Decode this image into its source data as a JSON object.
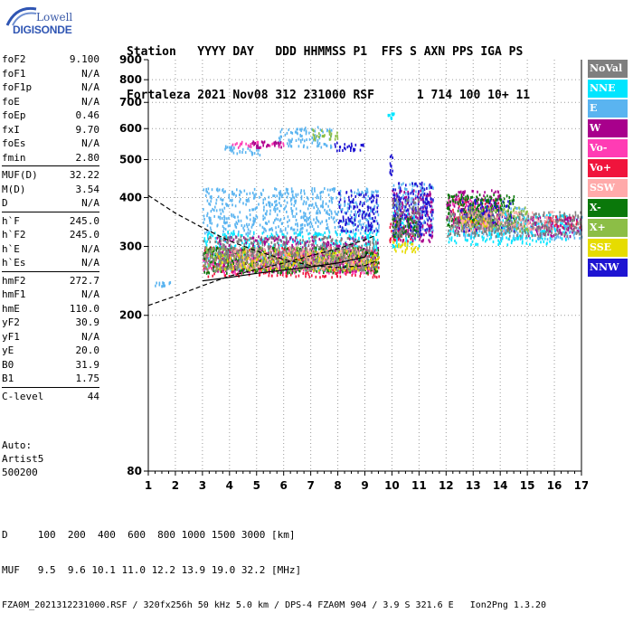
{
  "logo": {
    "line1": "Lowell",
    "line2": "DIGISONDE"
  },
  "header": {
    "line1": "Station   YYYY DAY   DDD HHMMSS P1  FFS S AXN PPS IGA PS",
    "line2": "Fortaleza 2021 Nov08 312 231000 RSF      1 714 100 10+ 11"
  },
  "params": [
    {
      "name": "foF2",
      "value": "9.100"
    },
    {
      "name": "foF1",
      "value": "N/A"
    },
    {
      "name": "foF1p",
      "value": "N/A"
    },
    {
      "name": "foE",
      "value": "N/A"
    },
    {
      "name": "foEp",
      "value": "0.46"
    },
    {
      "name": "fxI",
      "value": "9.70"
    },
    {
      "name": "foEs",
      "value": "N/A"
    },
    {
      "name": "fmin",
      "value": "2.80"
    },
    {
      "name": "MUF(D)",
      "value": "32.22"
    },
    {
      "name": "M(D)",
      "value": "3.54"
    },
    {
      "name": "D",
      "value": "N/A"
    },
    {
      "name": "h`F",
      "value": "245.0"
    },
    {
      "name": "h`F2",
      "value": "245.0"
    },
    {
      "name": "h`E",
      "value": "N/A"
    },
    {
      "name": "h`Es",
      "value": "N/A"
    },
    {
      "name": "hmF2",
      "value": "272.7"
    },
    {
      "name": "hmF1",
      "value": "N/A"
    },
    {
      "name": "hmE",
      "value": "110.0"
    },
    {
      "name": "yF2",
      "value": "30.9"
    },
    {
      "name": "yF1",
      "value": "N/A"
    },
    {
      "name": "yE",
      "value": "20.0"
    },
    {
      "name": "B0",
      "value": "31.9"
    },
    {
      "name": "B1",
      "value": "1.75"
    },
    {
      "name": "C-level",
      "value": "44"
    }
  ],
  "auto": {
    "line1": "Auto:",
    "line2": "Artist5",
    "line3": "500200"
  },
  "legend": [
    {
      "label": "NoVal",
      "color": "#7f7f7f"
    },
    {
      "label": "NNE",
      "color": "#00e5ff"
    },
    {
      "label": "E",
      "color": "#5ab4f0"
    },
    {
      "label": "W",
      "color": "#a8008c"
    },
    {
      "label": "Vo-",
      "color": "#ff3cb4"
    },
    {
      "label": "Vo+",
      "color": "#f0143c"
    },
    {
      "label": "SSW",
      "color": "#ffaaaa"
    },
    {
      "label": "X-",
      "color": "#0a780a"
    },
    {
      "label": "X+",
      "color": "#8cbe46"
    },
    {
      "label": "SSE",
      "color": "#e6dc00"
    },
    {
      "label": "NNW",
      "color": "#1e14d2"
    }
  ],
  "chart_data": {
    "type": "scatter",
    "title": "",
    "xlabel": "",
    "ylabel": "",
    "xlim": [
      1,
      17
    ],
    "ylim": [
      80,
      900
    ],
    "y_scale": "log",
    "x_ticks": [
      1,
      2,
      3,
      4,
      5,
      6,
      7,
      8,
      9,
      10,
      11,
      12,
      13,
      14,
      15,
      16,
      17
    ],
    "y_ticks": [
      80,
      200,
      300,
      400,
      500,
      600,
      700,
      800,
      900
    ],
    "grid": true,
    "legend_position": "right",
    "profile_lines": [
      {
        "name": "",
        "style": "dashed",
        "points": [
          [
            1,
            405
          ],
          [
            2,
            365
          ],
          [
            3,
            335
          ],
          [
            4,
            310
          ],
          [
            5,
            292
          ],
          [
            6,
            278
          ],
          [
            7,
            268
          ],
          [
            8,
            265
          ],
          [
            9,
            268
          ],
          [
            9.4,
            275
          ]
        ]
      },
      {
        "name": "",
        "style": "dashed",
        "points": [
          [
            1,
            212
          ],
          [
            2,
            224
          ],
          [
            3,
            238
          ],
          [
            4,
            252
          ],
          [
            5,
            262
          ],
          [
            6,
            272
          ],
          [
            7,
            284
          ],
          [
            8,
            296
          ],
          [
            9,
            312
          ],
          [
            9.4,
            320
          ]
        ]
      },
      {
        "name": "",
        "style": "solid",
        "points": [
          [
            3,
            245
          ],
          [
            4,
            250
          ],
          [
            5,
            256
          ],
          [
            6,
            261
          ],
          [
            7,
            266
          ],
          [
            8,
            272
          ],
          [
            9,
            282
          ],
          [
            9.1,
            290
          ]
        ]
      }
    ],
    "series": [
      {
        "class": "E",
        "regions": [
          [
            3.8,
            5.2,
            515,
            545
          ],
          [
            5.8,
            7.8,
            540,
            610
          ],
          [
            3,
            9.5,
            325,
            425
          ],
          [
            10,
            11.5,
            330,
            440
          ],
          [
            12.5,
            15,
            315,
            380
          ],
          [
            15,
            17,
            315,
            360
          ],
          [
            1.2,
            1.8,
            238,
            245
          ]
        ]
      },
      {
        "class": "NNE",
        "regions": [
          [
            3,
            9.5,
            262,
            330
          ],
          [
            10,
            11,
            300,
            370
          ],
          [
            12,
            16.5,
            305,
            365
          ],
          [
            9.8,
            10.1,
            640,
            660
          ],
          [
            5,
            5.2,
            278,
            285
          ]
        ]
      },
      {
        "class": "Vo+",
        "regions": [
          [
            3,
            9.5,
            252,
            300
          ],
          [
            9.9,
            10.8,
            310,
            360
          ],
          [
            12.2,
            14,
            345,
            400
          ],
          [
            15.5,
            17,
            335,
            360
          ]
        ]
      },
      {
        "class": "Vo-",
        "regions": [
          [
            3,
            9.4,
            258,
            295
          ],
          [
            4,
            6,
            540,
            560
          ],
          [
            12,
            13,
            380,
            400
          ]
        ]
      },
      {
        "class": "W",
        "regions": [
          [
            3.5,
            9.5,
            260,
            320
          ],
          [
            4.5,
            6,
            540,
            560
          ],
          [
            10,
            11.5,
            310,
            420
          ],
          [
            12,
            14,
            330,
            420
          ],
          [
            15,
            17,
            320,
            360
          ]
        ]
      },
      {
        "class": "NNW",
        "regions": [
          [
            7.8,
            9,
            530,
            560
          ],
          [
            8,
            9.5,
            330,
            420
          ],
          [
            10,
            11.5,
            320,
            440
          ],
          [
            12.5,
            14.5,
            330,
            400
          ],
          [
            9.9,
            10,
            460,
            520
          ]
        ]
      },
      {
        "class": "X-",
        "regions": [
          [
            3,
            9.5,
            258,
            300
          ],
          [
            10,
            11,
            320,
            360
          ],
          [
            12,
            14.5,
            340,
            410
          ]
        ]
      },
      {
        "class": "X+",
        "regions": [
          [
            3,
            9,
            262,
            300
          ],
          [
            7,
            8,
            565,
            600
          ],
          [
            12.5,
            15,
            330,
            380
          ]
        ]
      },
      {
        "class": "SSE",
        "regions": [
          [
            3.5,
            9.5,
            262,
            295
          ],
          [
            10,
            11,
            290,
            310
          ],
          [
            12.5,
            14,
            340,
            360
          ]
        ]
      },
      {
        "class": "SSW",
        "regions": [
          [
            4,
            9,
            265,
            300
          ],
          [
            12,
            16,
            330,
            370
          ]
        ]
      },
      {
        "class": "NoVal",
        "regions": [
          [
            3,
            9.5,
            262,
            320
          ],
          [
            10,
            11,
            320,
            400
          ],
          [
            12,
            17,
            320,
            370
          ]
        ]
      }
    ]
  },
  "footer": {
    "line1": "D     100  200  400  600  800 1000 1500 3000 [km]",
    "line2": "MUF   9.5  9.6 10.1 11.0 12.2 13.9 19.0 32.2 [MHz]",
    "line3": "FZA0M_2021312231000.RSF / 320fx256h 50 kHz 5.0 km / DPS-4 FZA0M 904 / 3.9 S 321.6 E   Ion2Png 1.3.20"
  }
}
